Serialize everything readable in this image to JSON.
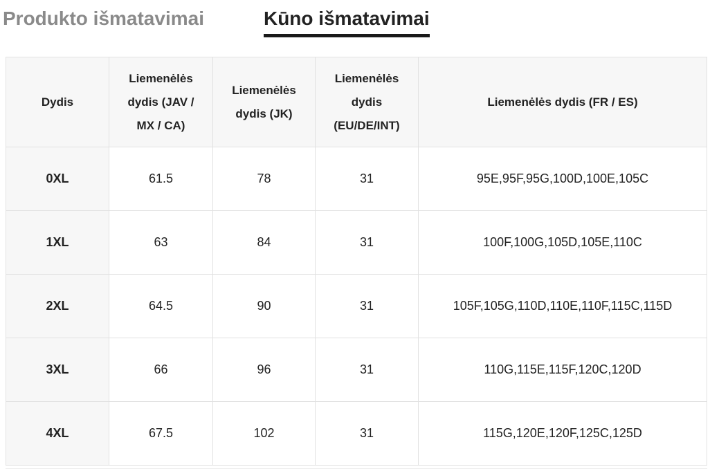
{
  "tabs": [
    {
      "label": "Produkto išmatavimai",
      "active": false
    },
    {
      "label": "Kūno išmatavimai",
      "active": true
    }
  ],
  "table": {
    "headers": [
      "Dydis",
      "Liemenėlės dydis (JAV / MX / CA)",
      "Liemenėlės dydis (JK)",
      "Liemenėlės dydis (EU/DE/INT)",
      "Liemenėlės dydis (FR / ES)"
    ],
    "rows": [
      [
        "0XL",
        "61.5",
        "78",
        "31",
        "95E,95F,95G,100D,100E,105C"
      ],
      [
        "1XL",
        "63",
        "84",
        "31",
        "100F,100G,105D,105E,110C"
      ],
      [
        "2XL",
        "64.5",
        "90",
        "31",
        "105F,105G,110D,110E,110F,115C,115D"
      ],
      [
        "3XL",
        "66",
        "96",
        "31",
        "110G,115E,115F,120C,120D"
      ],
      [
        "4XL",
        "67.5",
        "102",
        "31",
        "115G,120E,120F,125C,125D"
      ]
    ]
  },
  "colors": {
    "active_tab_text": "#222222",
    "active_tab_underline": "#1a1a1a",
    "inactive_tab_text": "#8a8a8a",
    "header_bg": "#f7f7f7",
    "border": "#e1e1e1",
    "cell_text": "#222222"
  }
}
